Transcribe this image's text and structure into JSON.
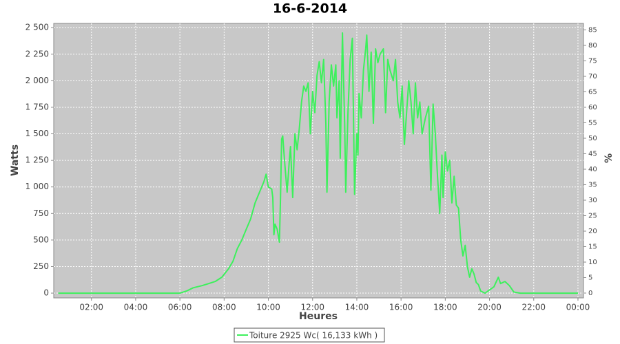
{
  "chart_data": {
    "type": "line",
    "title": "16-6-2014",
    "x_label": "Heures",
    "y_label": "Watts",
    "y2_label": "%",
    "xlim": [
      0.295,
      24.25
    ],
    "xticks": [
      {
        "value": 2,
        "label": "02:00"
      },
      {
        "value": 4,
        "label": "04:00"
      },
      {
        "value": 6,
        "label": "06:00"
      },
      {
        "value": 8,
        "label": "08:00"
      },
      {
        "value": 10,
        "label": "10:00"
      },
      {
        "value": 12,
        "label": "12:00"
      },
      {
        "value": 14,
        "label": "14:00"
      },
      {
        "value": 16,
        "label": "16:00"
      },
      {
        "value": 18,
        "label": "18:00"
      },
      {
        "value": 20,
        "label": "20:00"
      },
      {
        "value": 22,
        "label": "22:00"
      },
      {
        "value": 24,
        "label": "00:00"
      }
    ],
    "ylim": [
      -45,
      2540
    ],
    "yticks": [
      0,
      250,
      500,
      750,
      {
        "value": 1000,
        "label": "1 000"
      },
      {
        "value": 1250,
        "label": "1 250"
      },
      {
        "value": 1500,
        "label": "1 500"
      },
      {
        "value": 1750,
        "label": "1 750"
      },
      {
        "value": 2000,
        "label": "2 000"
      },
      {
        "value": 2250,
        "label": "2 250"
      },
      {
        "value": 2500,
        "label": "2 500"
      }
    ],
    "y2lim": [
      -1.56,
      87.1
    ],
    "y2ticks": [
      0,
      5,
      10,
      15,
      20,
      25,
      30,
      35,
      40,
      45,
      50,
      55,
      60,
      65,
      70,
      75,
      80,
      85
    ],
    "grid": true,
    "legend_position": "bottom",
    "x": [
      0.5,
      2,
      4,
      5,
      5.8,
      6.0,
      6.3,
      6.6,
      7.0,
      7.3,
      7.6,
      7.9,
      8.2,
      8.4,
      8.6,
      8.8,
      9.0,
      9.2,
      9.4,
      9.6,
      9.8,
      9.9,
      10.0,
      10.15,
      10.2,
      10.25,
      10.3,
      10.4,
      10.5,
      10.55,
      10.6,
      10.65,
      10.75,
      10.85,
      10.95,
      11.0,
      11.1,
      11.2,
      11.3,
      11.4,
      11.5,
      11.6,
      11.7,
      11.8,
      11.9,
      12.0,
      12.1,
      12.2,
      12.3,
      12.4,
      12.5,
      12.6,
      12.65,
      12.75,
      12.85,
      12.95,
      13.05,
      13.1,
      13.2,
      13.25,
      13.35,
      13.45,
      13.5,
      13.6,
      13.7,
      13.8,
      13.9,
      14.0,
      14.05,
      14.1,
      14.2,
      14.3,
      14.4,
      14.45,
      14.55,
      14.65,
      14.75,
      14.85,
      14.95,
      15.05,
      15.2,
      15.3,
      15.4,
      15.5,
      15.65,
      15.75,
      15.85,
      15.95,
      16.05,
      16.15,
      16.25,
      16.35,
      16.45,
      16.55,
      16.65,
      16.75,
      16.85,
      16.95,
      17.1,
      17.25,
      17.35,
      17.45,
      17.55,
      17.65,
      17.75,
      17.85,
      17.9,
      18.0,
      18.1,
      18.2,
      18.3,
      18.4,
      18.5,
      18.6,
      18.7,
      18.8,
      18.9,
      19.0,
      19.1,
      19.2,
      19.3,
      19.4,
      19.5,
      19.6,
      19.8,
      20.0,
      20.2,
      20.4,
      20.5,
      20.7,
      20.9,
      21.1,
      21.4,
      22.0,
      23.0,
      24.0
    ],
    "series": [
      {
        "name": "Toiture 2925 Wc( 16,133 kWh )",
        "color": "#3df05c",
        "values": [
          0,
          0,
          0,
          0,
          0,
          0,
          20,
          50,
          70,
          90,
          110,
          150,
          230,
          300,
          420,
          500,
          600,
          700,
          850,
          950,
          1050,
          1120,
          1000,
          980,
          900,
          550,
          650,
          600,
          480,
          900,
          1450,
          1480,
          1200,
          950,
          1250,
          1380,
          900,
          1500,
          1350,
          1550,
          1800,
          1950,
          1900,
          1980,
          1500,
          1900,
          1700,
          2050,
          2180,
          1980,
          2200,
          1600,
          950,
          1800,
          2150,
          1950,
          2150,
          1650,
          2000,
          1270,
          2450,
          1600,
          950,
          1700,
          2200,
          2400,
          930,
          1500,
          1300,
          1880,
          1650,
          2100,
          2300,
          2430,
          1900,
          2270,
          1600,
          2300,
          2170,
          2250,
          2300,
          1700,
          2200,
          2100,
          2000,
          2200,
          1800,
          1650,
          1950,
          1400,
          1700,
          2000,
          1800,
          1500,
          1980,
          1650,
          1800,
          1500,
          1650,
          1760,
          970,
          1780,
          1500,
          1100,
          750,
          1300,
          900,
          1330,
          1150,
          1250,
          850,
          1100,
          830,
          800,
          500,
          350,
          450,
          250,
          150,
          230,
          180,
          100,
          80,
          20,
          0,
          30,
          60,
          150,
          90,
          110,
          70,
          10,
          0,
          0,
          0,
          0
        ]
      }
    ]
  }
}
